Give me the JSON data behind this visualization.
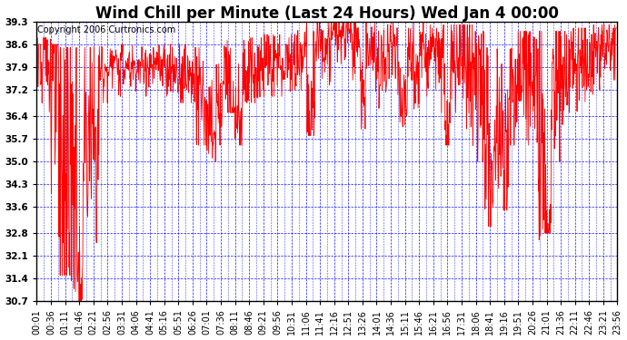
{
  "title": "Wind Chill per Minute (Last 24 Hours) Wed Jan 4 00:00",
  "copyright": "Copyright 2006 Curtronics.com",
  "line_color": "red",
  "background_color": "white",
  "grid_color": "blue",
  "yticks": [
    30.7,
    31.4,
    32.1,
    32.8,
    33.6,
    34.3,
    35.0,
    35.7,
    36.4,
    37.2,
    37.9,
    38.6,
    39.3
  ],
  "ymin": 30.7,
  "ymax": 39.3,
  "title_fontsize": 12,
  "copyright_fontsize": 7,
  "tick_fontsize": 7.5,
  "xtick_labels": [
    "00:01",
    "00:36",
    "01:11",
    "01:46",
    "02:21",
    "02:56",
    "03:31",
    "04:06",
    "04:41",
    "05:16",
    "05:51",
    "06:26",
    "07:01",
    "07:36",
    "08:11",
    "08:46",
    "09:21",
    "09:56",
    "10:31",
    "11:06",
    "11:41",
    "12:16",
    "12:51",
    "13:26",
    "14:01",
    "14:36",
    "15:11",
    "15:46",
    "16:21",
    "16:56",
    "17:31",
    "18:06",
    "18:41",
    "19:16",
    "19:51",
    "20:26",
    "21:01",
    "21:36",
    "22:11",
    "22:46",
    "23:21",
    "23:56"
  ],
  "figwidth": 6.9,
  "figheight": 3.75,
  "dpi": 100
}
